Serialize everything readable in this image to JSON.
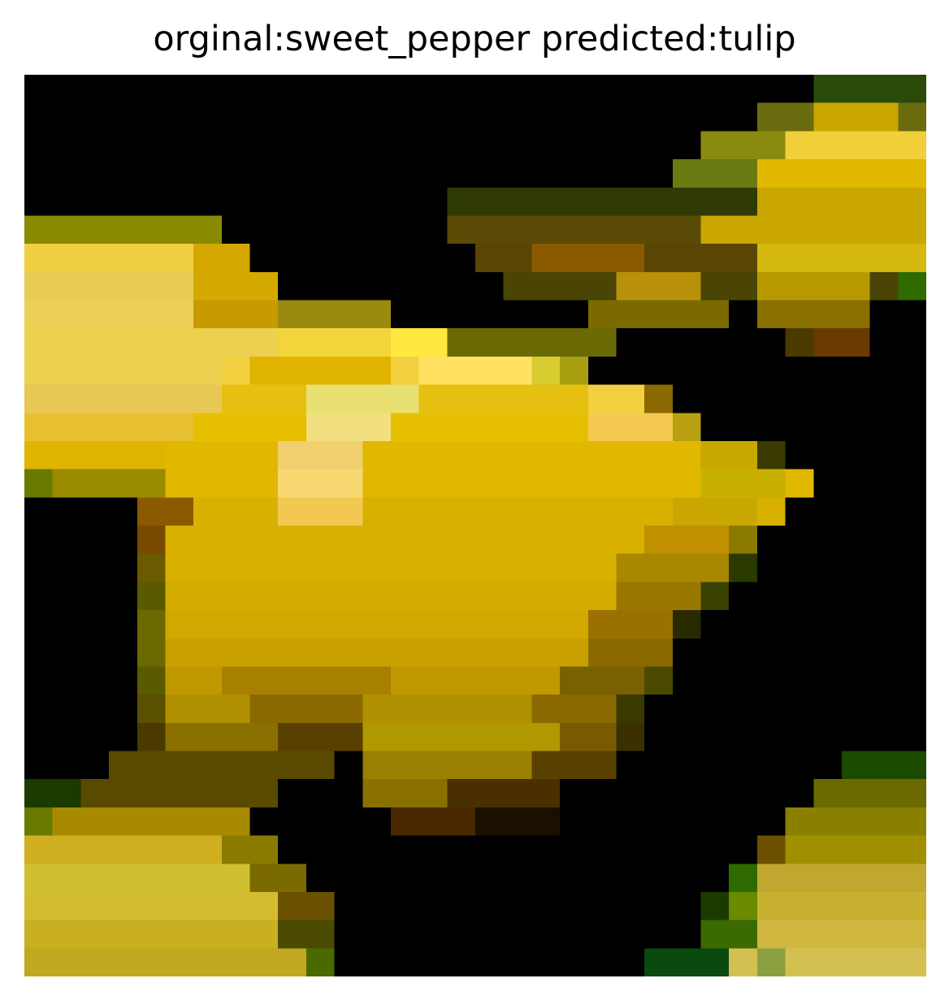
{
  "figure": {
    "title": "orginal:sweet_pepper predicted:tulip"
  },
  "image": {
    "subject": "low-resolution pixelated photo of yellow pepper / yellow flowers on black background",
    "colors": {
      "background": "#000000",
      "bright_yellow": "#f2d13a",
      "gold": "#e0b800",
      "dark_gold": "#b38f00",
      "olive": "#6b6b00",
      "brown": "#5a3a00",
      "dark_green": "#1f4a00",
      "green": "#3f7a00"
    }
  }
}
